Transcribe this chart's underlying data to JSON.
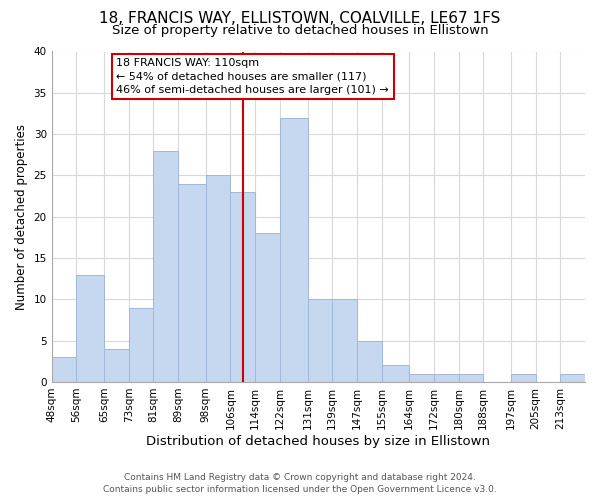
{
  "title": "18, FRANCIS WAY, ELLISTOWN, COALVILLE, LE67 1FS",
  "subtitle": "Size of property relative to detached houses in Ellistown",
  "xlabel": "Distribution of detached houses by size in Ellistown",
  "ylabel": "Number of detached properties",
  "footer_line1": "Contains HM Land Registry data © Crown copyright and database right 2024.",
  "footer_line2": "Contains public sector information licensed under the Open Government Licence v3.0.",
  "bin_labels": [
    "48sqm",
    "56sqm",
    "65sqm",
    "73sqm",
    "81sqm",
    "89sqm",
    "98sqm",
    "106sqm",
    "114sqm",
    "122sqm",
    "131sqm",
    "139sqm",
    "147sqm",
    "155sqm",
    "164sqm",
    "172sqm",
    "180sqm",
    "188sqm",
    "197sqm",
    "205sqm",
    "213sqm"
  ],
  "bin_edges": [
    48,
    56,
    65,
    73,
    81,
    89,
    98,
    106,
    114,
    122,
    131,
    139,
    147,
    155,
    164,
    172,
    180,
    188,
    197,
    205,
    213,
    221
  ],
  "bar_heights": [
    3,
    13,
    4,
    9,
    28,
    24,
    25,
    23,
    18,
    32,
    10,
    10,
    5,
    2,
    1,
    1,
    1,
    0,
    1,
    0,
    1
  ],
  "bar_color": "#c5d8f0",
  "bar_edge_color": "#a0b8d8",
  "property_size": 110,
  "vline_color": "#cc0000",
  "annotation_text_line1": "18 FRANCIS WAY: 110sqm",
  "annotation_text_line2": "← 54% of detached houses are smaller (117)",
  "annotation_text_line3": "46% of semi-detached houses are larger (101) →",
  "annotation_box_edge": "#cc0000",
  "ylim": [
    0,
    40
  ],
  "yticks": [
    0,
    5,
    10,
    15,
    20,
    25,
    30,
    35,
    40
  ],
  "title_fontsize": 11,
  "subtitle_fontsize": 9.5,
  "xlabel_fontsize": 9.5,
  "ylabel_fontsize": 8.5,
  "tick_fontsize": 7.5,
  "annotation_fontsize": 8,
  "footer_fontsize": 6.5
}
